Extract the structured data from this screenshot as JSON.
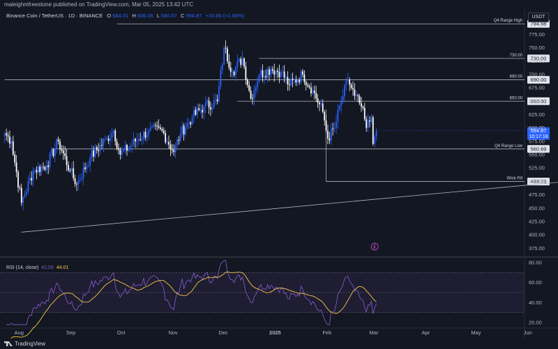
{
  "header": {
    "publisher": "maleighmfreestone published on TradingView.com, Mar 05, 2025 13:42 UTC"
  },
  "legend": {
    "symbol": "Binance Coin / TetherUS · 1D · BINANCE",
    "o_label": "O",
    "o": "584.01",
    "h_label": "H",
    "h": "606.06",
    "l_label": "L",
    "l": "580.57",
    "c_label": "C",
    "c": "594.87",
    "change": "+10.86 (+1.86%)",
    "up_color": "#2962ff",
    "down_color": "#ffffff"
  },
  "currency_button": "USDT",
  "footer": {
    "brand": "TradingView"
  },
  "chart_data": [
    {
      "type": "candlestick",
      "symbol": "BNBUSDT",
      "timeframe": "1D",
      "ylim": [
        365,
        808
      ],
      "x_ticks": [
        "Aug",
        "Sep",
        "Oct",
        "Nov",
        "Dec",
        "2025",
        "Feb",
        "Mar",
        "Apr",
        "May",
        "Jun"
      ],
      "y_ticks": [
        "375.00",
        "400.00",
        "425.00",
        "450.00",
        "475.00",
        "500.00",
        "525.00",
        "550.00",
        "575.00",
        "600.00",
        "625.00",
        "650.00",
        "675.00",
        "700.00",
        "725.00",
        "750.00",
        "775.00"
      ],
      "close_anchors": [
        {
          "date": "2024-07-26",
          "close": 590
        },
        {
          "date": "2024-07-30",
          "close": 575
        },
        {
          "date": "2024-08-05",
          "close": 460
        },
        {
          "date": "2024-08-12",
          "close": 520
        },
        {
          "date": "2024-08-20",
          "close": 530
        },
        {
          "date": "2024-08-27",
          "close": 575
        },
        {
          "date": "2024-09-03",
          "close": 520
        },
        {
          "date": "2024-09-07",
          "close": 495
        },
        {
          "date": "2024-09-15",
          "close": 545
        },
        {
          "date": "2024-09-25",
          "close": 580
        },
        {
          "date": "2024-09-29",
          "close": 595
        },
        {
          "date": "2024-10-03",
          "close": 550
        },
        {
          "date": "2024-10-12",
          "close": 575
        },
        {
          "date": "2024-10-20",
          "close": 595
        },
        {
          "date": "2024-10-28",
          "close": 595
        },
        {
          "date": "2024-11-04",
          "close": 555
        },
        {
          "date": "2024-11-08",
          "close": 590
        },
        {
          "date": "2024-11-15",
          "close": 620
        },
        {
          "date": "2024-11-22",
          "close": 640
        },
        {
          "date": "2024-11-30",
          "close": 650
        },
        {
          "date": "2024-12-04",
          "close": 750
        },
        {
          "date": "2024-12-09",
          "close": 705
        },
        {
          "date": "2024-12-15",
          "close": 730
        },
        {
          "date": "2024-12-20",
          "close": 655
        },
        {
          "date": "2024-12-25",
          "close": 700
        },
        {
          "date": "2025-01-01",
          "close": 710
        },
        {
          "date": "2025-01-07",
          "close": 705
        },
        {
          "date": "2025-01-12",
          "close": 680
        },
        {
          "date": "2025-01-20",
          "close": 700
        },
        {
          "date": "2025-01-26",
          "close": 670
        },
        {
          "date": "2025-02-01",
          "close": 630
        },
        {
          "date": "2025-02-04",
          "close": 580
        },
        {
          "date": "2025-02-08",
          "close": 600
        },
        {
          "date": "2025-02-12",
          "close": 650
        },
        {
          "date": "2025-02-16",
          "close": 690
        },
        {
          "date": "2025-02-20",
          "close": 660
        },
        {
          "date": "2025-02-24",
          "close": 640
        },
        {
          "date": "2025-02-27",
          "close": 600
        },
        {
          "date": "2025-03-02",
          "close": 620
        },
        {
          "date": "2025-03-03",
          "close": 570
        },
        {
          "date": "2025-03-04",
          "close": 584
        },
        {
          "date": "2025-03-05",
          "close": 595
        }
      ],
      "annotations": {
        "h_lines": [
          {
            "label": "Q4 Range High",
            "value": 794.68,
            "tag": "794.68",
            "from_date": "2024-10-01"
          },
          {
            "label": "730.00",
            "value": 730.0,
            "tag": "730.00",
            "from_date": "2024-12-25"
          },
          {
            "label": "690.00",
            "value": 690.0,
            "tag": "690.00",
            "from_date": "2024-07-26"
          },
          {
            "label": "650.00",
            "value": 650.0,
            "tag": "650.00",
            "from_date": "2024-12-12"
          },
          {
            "label": "Q4 Range Low",
            "value": 560.69,
            "tag": "560.69",
            "from_date": "2024-08-23"
          },
          {
            "label": "Wick Fill",
            "value": 499.76,
            "tag": "499.76",
            "from_date": "2025-02-03"
          }
        ],
        "trendline": {
          "start": {
            "date": "2024-08-05",
            "value": 405
          },
          "end": {
            "date": "2025-06-27",
            "value": 500
          }
        },
        "price_tag": {
          "value": "594.87",
          "countdown": "10:17:18"
        }
      }
    },
    {
      "type": "line",
      "title": "RSI (14, close)",
      "rsi_value": "42.59",
      "ma_value": "44.01",
      "ylim": [
        18,
        82
      ],
      "y_ticks": [
        "80.00",
        "60.00",
        "40.00",
        "20.00"
      ],
      "bands": {
        "upper": 70,
        "middle": 50,
        "lower": 30
      },
      "series": [
        {
          "color": "#7e57c2"
        },
        {
          "color": "#f7c948"
        }
      ]
    }
  ]
}
